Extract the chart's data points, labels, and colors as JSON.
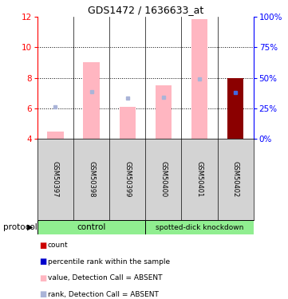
{
  "title": "GDS1472 / 1636633_at",
  "samples": [
    "GSM50397",
    "GSM50398",
    "GSM50399",
    "GSM50400",
    "GSM50401",
    "GSM50402"
  ],
  "ylim_left": [
    4,
    12
  ],
  "ylim_right": [
    0,
    100
  ],
  "yticks_left": [
    4,
    6,
    8,
    10,
    12
  ],
  "yticks_right": [
    0,
    25,
    50,
    75,
    100
  ],
  "ytick_labels_right": [
    "0%",
    "25%",
    "50%",
    "75%",
    "100%"
  ],
  "bar_values": [
    4.5,
    9.0,
    6.1,
    7.5,
    11.8,
    8.0
  ],
  "bar_colors_absent": "#ffb6c1",
  "bar_color_present": "#8b0000",
  "rank_markers": [
    6.1,
    7.1,
    6.65,
    6.75,
    7.9,
    7.05
  ],
  "rank_marker_color_absent": "#aab4d8",
  "rank_marker_color_present": "#4169e1",
  "bar_width": 0.45,
  "left_axis_color": "red",
  "right_axis_color": "blue",
  "gridline_ticks": [
    6,
    8,
    10
  ],
  "label_bg": "#d3d3d3",
  "group_bg": "#90ee90",
  "group_divider": 3,
  "group1_label": "control",
  "group2_label": "spotted-dick knockdown",
  "legend_colors": [
    "#cc0000",
    "#0000cc",
    "#ffb6c1",
    "#aab4d8"
  ],
  "legend_labels": [
    "count",
    "percentile rank within the sample",
    "value, Detection Call = ABSENT",
    "rank, Detection Call = ABSENT"
  ],
  "protocol_label": "protocol"
}
